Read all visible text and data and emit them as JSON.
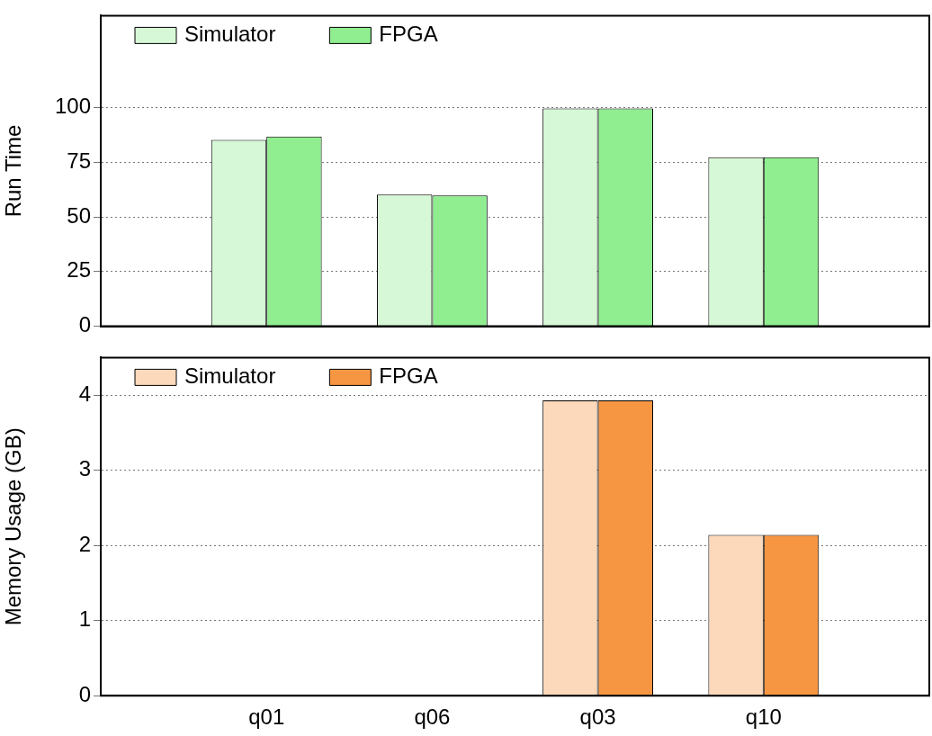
{
  "chart_data": [
    {
      "type": "bar",
      "ylabel": "Run Time",
      "categories": [
        null,
        null,
        null,
        null
      ],
      "series": [
        {
          "name": "Simulator",
          "color": "#d6f8d6",
          "values": [
            85.2,
            60.2,
            99.6,
            77.3
          ]
        },
        {
          "name": "FPGA",
          "color": "#90ee90",
          "values": [
            86.7,
            59.8,
            99.6,
            77.3
          ]
        }
      ],
      "ylim": [
        0,
        142
      ],
      "yticks": [
        0,
        25,
        50,
        75,
        100
      ],
      "grid": "y",
      "legend": "top left",
      "tick_labels": "y"
    },
    {
      "type": "bar",
      "ylabel": "Memory Usage (GB)",
      "categories": [
        "q01",
        "q06",
        "q03",
        "q10"
      ],
      "series": [
        {
          "name": "Simulator",
          "color": "#fcd9ba",
          "values": [
            0,
            0,
            3.93,
            2.14
          ]
        },
        {
          "name": "FPGA",
          "color": "#f79642",
          "values": [
            0,
            0,
            3.93,
            2.14
          ]
        }
      ],
      "ylim": [
        0,
        4.5
      ],
      "yticks": [
        0,
        1,
        2,
        3,
        4
      ],
      "grid": "y",
      "legend": "top left"
    }
  ]
}
